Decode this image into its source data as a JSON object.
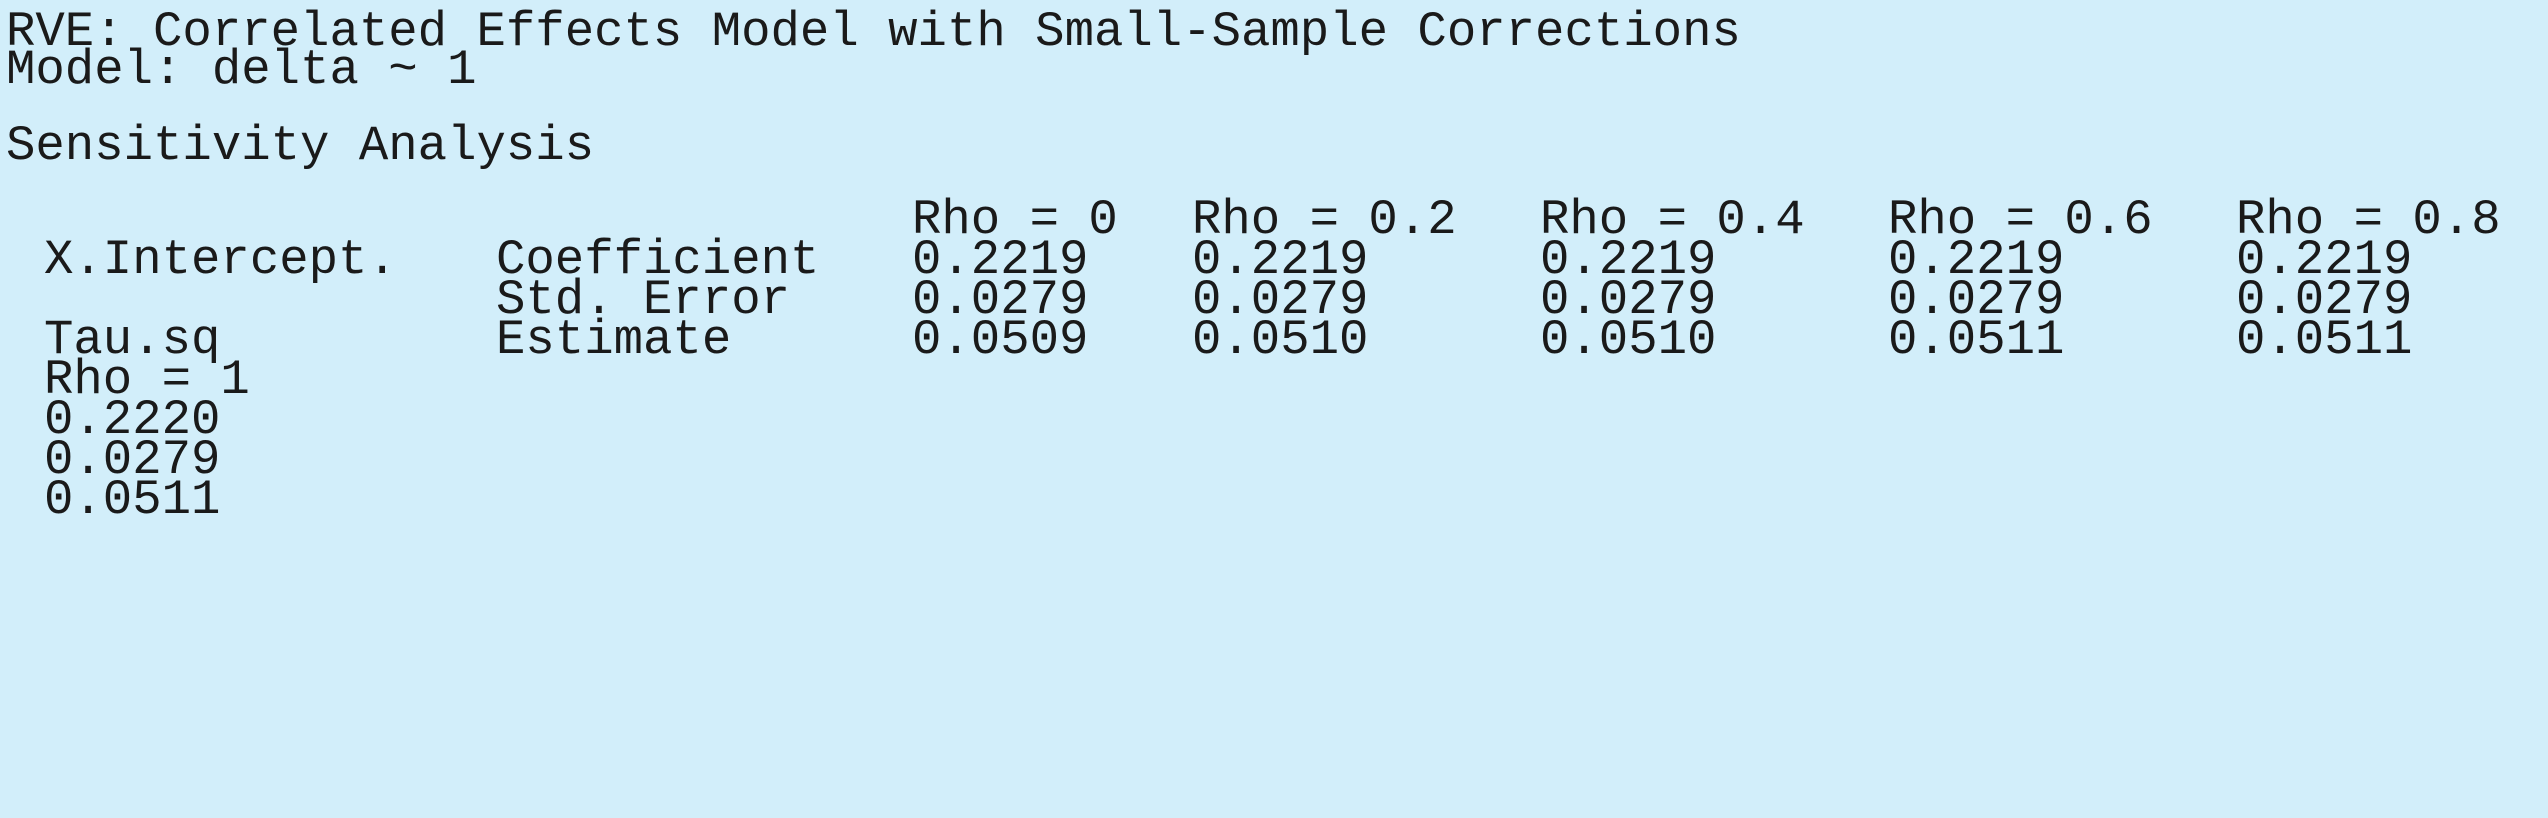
{
  "console": {
    "header": {
      "title": "RVE: Correlated Effects Model with Small-Sample Corrections",
      "model": "Model: delta ~ 1"
    },
    "section_title": "Sensitivity Analysis",
    "table": {
      "columns": [
        "Rho = 0",
        "Rho = 0.2",
        "Rho = 0.4",
        "Rho = 0.6",
        "Rho = 0.8"
      ],
      "rows": [
        {
          "param": "X.Intercept.",
          "stat": "Coefficient",
          "values": [
            "0.2219",
            "0.2219",
            "0.2219",
            "0.2219",
            "0.2219"
          ]
        },
        {
          "param": "",
          "stat": "Std. Error",
          "values": [
            "0.0279",
            "0.0279",
            "0.0279",
            "0.0279",
            "0.0279"
          ]
        },
        {
          "param": "Tau.sq",
          "stat": "Estimate",
          "values": [
            "0.0509",
            "0.0510",
            "0.0510",
            "0.0511",
            "0.0511"
          ]
        }
      ],
      "wrapped_column": {
        "header": "Rho = 1",
        "values": [
          "0.2220",
          "0.0279",
          "0.0511"
        ]
      }
    }
  }
}
